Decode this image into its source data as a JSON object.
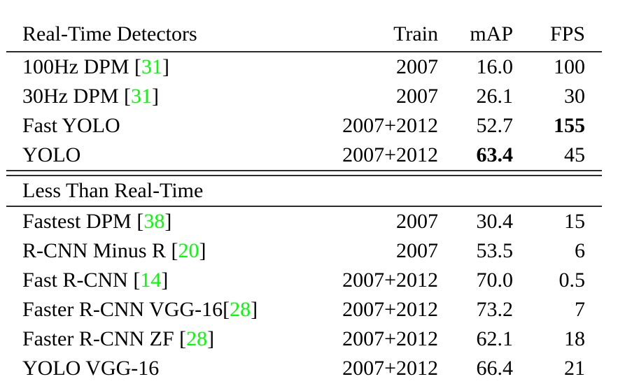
{
  "colors": {
    "background": "#ffffff",
    "text": "#000000",
    "rule": "#2b2b2b",
    "citation_green": "#00FF00"
  },
  "table": {
    "header": {
      "col_detectors": "Real-Time Detectors",
      "col_train": "Train",
      "col_map": "mAP",
      "col_fps": "FPS"
    },
    "section2_title": "Less Than Real-Time",
    "rows_realtime": [
      {
        "name_pre": "100Hz DPM [",
        "cite": "31",
        "name_post": "]",
        "train": "2007",
        "map": "16.0",
        "fps": "100"
      },
      {
        "name_pre": "30Hz DPM [",
        "cite": "31",
        "name_post": "]",
        "train": "2007",
        "map": "26.1",
        "fps": "30"
      },
      {
        "name_pre": "Fast YOLO",
        "cite": "",
        "name_post": "",
        "train": "2007+2012",
        "map": "52.7",
        "fps": "155"
      },
      {
        "name_pre": "YOLO",
        "cite": "",
        "name_post": "",
        "train": "2007+2012",
        "map": "63.4",
        "fps": "45"
      }
    ],
    "rows_slow": [
      {
        "name_pre": "Fastest DPM [",
        "cite": "38",
        "name_post": "]",
        "train": "2007",
        "map": "30.4",
        "fps": "15"
      },
      {
        "name_pre": "R-CNN Minus R [",
        "cite": "20",
        "name_post": "]",
        "train": "2007",
        "map": "53.5",
        "fps": "6"
      },
      {
        "name_pre": "Fast R-CNN [",
        "cite": "14",
        "name_post": "]",
        "train": "2007+2012",
        "map": "70.0",
        "fps": "0.5"
      },
      {
        "name_pre": "Faster R-CNN VGG-16[",
        "cite": "28",
        "name_post": "]",
        "train": "2007+2012",
        "map": "73.2",
        "fps": "7"
      },
      {
        "name_pre": "Faster R-CNN ZF [",
        "cite": "28",
        "name_post": "]",
        "train": "2007+2012",
        "map": "62.1",
        "fps": "18"
      },
      {
        "name_pre": "YOLO VGG-16",
        "cite": "",
        "name_post": "",
        "train": "2007+2012",
        "map": "66.4",
        "fps": "21"
      }
    ]
  }
}
